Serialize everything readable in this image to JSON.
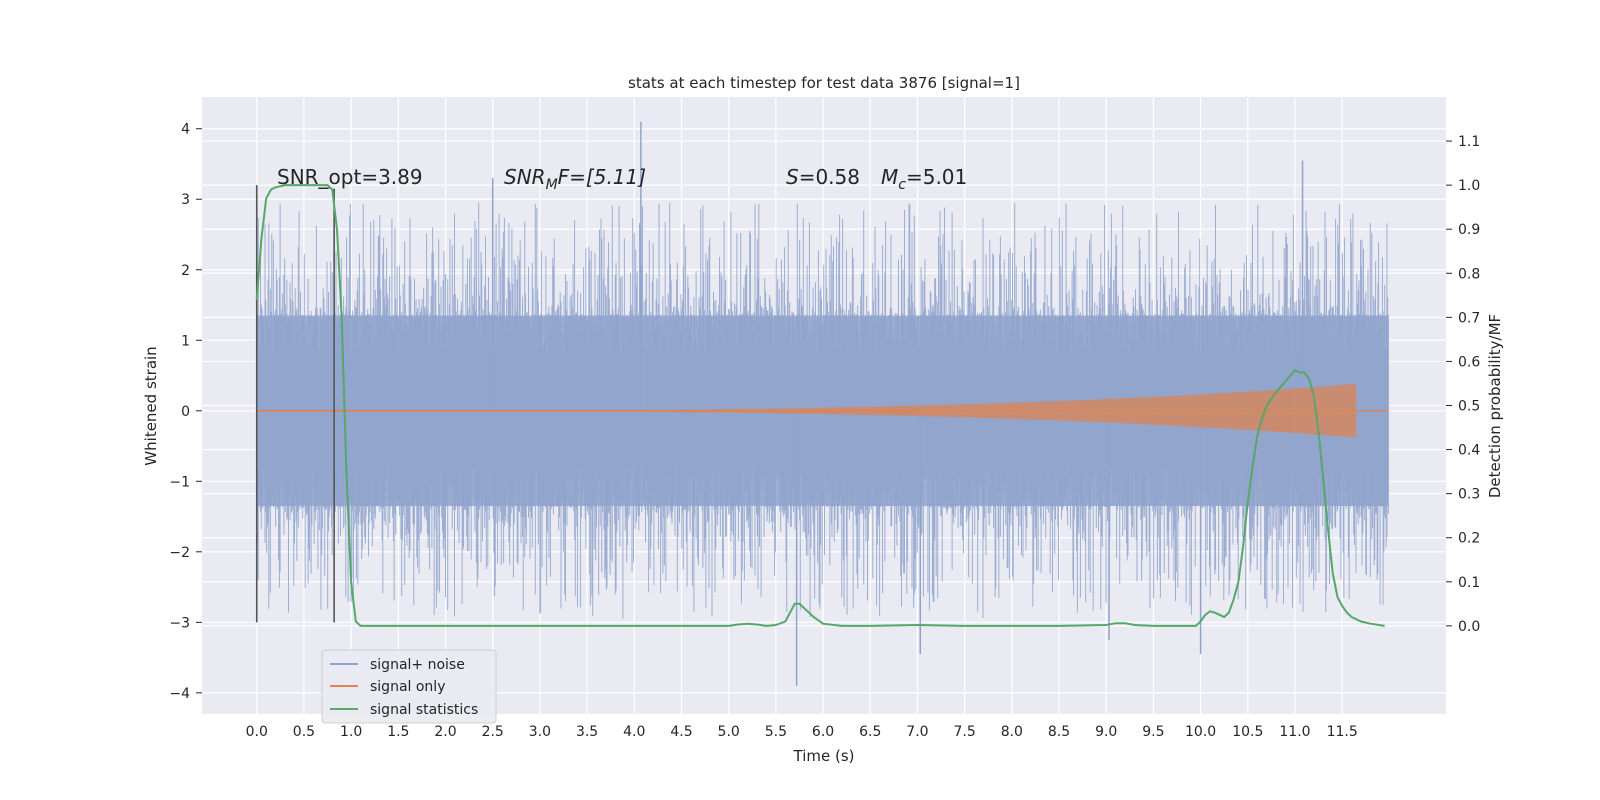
{
  "chart_data": {
    "type": "line",
    "title": "stats at each timestep for test data 3876 [signal=1]",
    "xlabel": "Time (s)",
    "ylabel": "Whitened strain",
    "ylabel_right": "Detection probability/MF",
    "xlim": [
      -0.58,
      12.6
    ],
    "ylim": [
      -4.3,
      4.45
    ],
    "ylim_right": [
      -0.2,
      1.2
    ],
    "x_ticks": [
      "0.0",
      "0.5",
      "1.0",
      "1.5",
      "2.0",
      "2.5",
      "3.0",
      "3.5",
      "4.0",
      "4.5",
      "5.0",
      "5.5",
      "6.0",
      "6.5",
      "7.0",
      "7.5",
      "8.0",
      "8.5",
      "9.0",
      "9.5",
      "10.0",
      "10.5",
      "11.0",
      "11.5"
    ],
    "y_ticks": [
      "4",
      "3",
      "2",
      "1",
      "0",
      "−1",
      "−2",
      "−3",
      "−4"
    ],
    "y_ticks_right": [
      "1.1",
      "1.0",
      "0.9",
      "0.8",
      "0.7",
      "0.6",
      "0.5",
      "0.4",
      "0.3",
      "0.2",
      "0.1",
      "0.0"
    ],
    "annotations": {
      "snr_opt": "SNR_opt=3.89",
      "snr_mf_label": "SNR",
      "snr_mf_sub": "M",
      "snr_mf_value": "F=[5.11]",
      "s_label": "S",
      "s_value": "=0.58",
      "mc_label": "M",
      "mc_sub": "c",
      "mc_value": "=5.01"
    },
    "legend": {
      "position": "lower-left",
      "entries": [
        "signal+ noise",
        "signal only",
        "signal statistics"
      ]
    },
    "grid": true,
    "colors": {
      "background": "#eaeaf2",
      "grid": "#ffffff",
      "noise": "#8fa3cc",
      "signal": "#dd8452",
      "stats": "#55a868",
      "marker": "#555555"
    },
    "series": [
      {
        "name": "signal+ noise",
        "axis": "left",
        "x_range": [
          0.0,
          11.99
        ],
        "typical_amplitude": 1.35,
        "notable_values": [
          {
            "x": 4.07,
            "y": 4.1
          },
          {
            "x": 11.08,
            "y": 3.55
          },
          {
            "x": 2.5,
            "y": 3.3
          },
          {
            "x": 5.72,
            "y": -3.9
          },
          {
            "x": 7.03,
            "y": -3.45
          },
          {
            "x": 10.0,
            "y": -3.45
          },
          {
            "x": 9.03,
            "y": -3.25
          }
        ]
      },
      {
        "name": "signal only",
        "axis": "left",
        "x_range": [
          0.0,
          11.65
        ],
        "peak_amplitude": 0.38
      },
      {
        "name": "signal statistics",
        "axis": "right",
        "x": [
          0.0,
          0.05,
          0.1,
          0.15,
          0.2,
          0.3,
          0.5,
          0.6,
          0.7,
          0.75,
          0.8,
          0.85,
          0.9,
          0.95,
          1.0,
          1.05,
          1.1,
          1.2,
          1.5,
          2.0,
          3.0,
          4.0,
          4.5,
          5.0,
          5.1,
          5.2,
          5.3,
          5.4,
          5.5,
          5.6,
          5.65,
          5.7,
          5.75,
          5.8,
          5.9,
          6.0,
          6.2,
          6.5,
          7.0,
          7.5,
          8.0,
          8.5,
          9.0,
          9.1,
          9.2,
          9.3,
          9.5,
          9.8,
          9.95,
          10.0,
          10.05,
          10.1,
          10.15,
          10.2,
          10.25,
          10.3,
          10.35,
          10.4,
          10.45,
          10.5,
          10.55,
          10.6,
          10.65,
          10.7,
          10.8,
          10.9,
          11.0,
          11.05,
          11.1,
          11.15,
          11.2,
          11.25,
          11.3,
          11.35,
          11.4,
          11.45,
          11.5,
          11.55,
          11.6,
          11.7,
          11.8,
          11.95
        ],
        "values": [
          0.74,
          0.88,
          0.97,
          0.99,
          0.995,
          1.0,
          1.0,
          1.0,
          1.0,
          1.0,
          0.99,
          0.9,
          0.7,
          0.35,
          0.1,
          0.01,
          0.0,
          0.0,
          0.0,
          0.0,
          0.0,
          0.0,
          0.0,
          0.0,
          0.003,
          0.005,
          0.003,
          0.0,
          0.002,
          0.01,
          0.03,
          0.05,
          0.05,
          0.04,
          0.02,
          0.005,
          0.0,
          0.0,
          0.002,
          0.0,
          0.0,
          0.0,
          0.002,
          0.006,
          0.006,
          0.002,
          0.0,
          0.0,
          0.0,
          0.01,
          0.025,
          0.033,
          0.03,
          0.025,
          0.02,
          0.03,
          0.06,
          0.1,
          0.18,
          0.28,
          0.36,
          0.43,
          0.47,
          0.5,
          0.53,
          0.555,
          0.58,
          0.575,
          0.575,
          0.56,
          0.52,
          0.44,
          0.33,
          0.22,
          0.12,
          0.065,
          0.045,
          0.03,
          0.02,
          0.01,
          0.005,
          0.0
        ]
      }
    ],
    "vertical_markers": [
      {
        "x": 0.0,
        "y_from": -3.0,
        "y_to": 3.2
      },
      {
        "x": 0.82,
        "y_from": -3.0,
        "y_to": 3.15
      }
    ]
  }
}
